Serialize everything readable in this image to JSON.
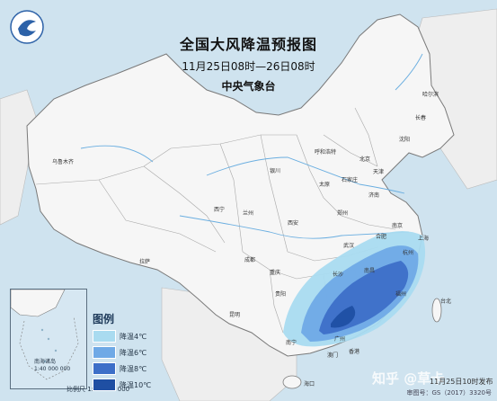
{
  "map": {
    "title": "全国大风降温预报图",
    "subtitle": "11月25日08时—26日08时",
    "agency": "中央气象台"
  },
  "legend": {
    "title": "图例",
    "items": [
      {
        "label": "降温4℃",
        "color": "#a9dbf0"
      },
      {
        "label": "降温6℃",
        "color": "#6fa9e6"
      },
      {
        "label": "降温8℃",
        "color": "#3d6fc8"
      },
      {
        "label": "降温10℃",
        "color": "#1f4fa3"
      }
    ]
  },
  "inset": {
    "label_line1": "南海诸岛",
    "label_line2": "1:40 000 000",
    "scale": "比例尺 1:20 000 000"
  },
  "cities": [
    {
      "name": "乌鲁木齐"
    },
    {
      "name": "拉萨"
    },
    {
      "name": "西宁"
    },
    {
      "name": "兰州"
    },
    {
      "name": "银川"
    },
    {
      "name": "呼和浩特"
    },
    {
      "name": "北京"
    },
    {
      "name": "天津"
    },
    {
      "name": "石家庄"
    },
    {
      "name": "太原"
    },
    {
      "name": "济南"
    },
    {
      "name": "郑州"
    },
    {
      "name": "西安"
    },
    {
      "name": "成都"
    },
    {
      "name": "重庆"
    },
    {
      "name": "武汉"
    },
    {
      "name": "长沙"
    },
    {
      "name": "南昌"
    },
    {
      "name": "杭州"
    },
    {
      "name": "上海"
    },
    {
      "name": "福州"
    },
    {
      "name": "台北"
    },
    {
      "name": "广州"
    },
    {
      "name": "南宁"
    },
    {
      "name": "贵阳"
    },
    {
      "name": "昆明"
    },
    {
      "name": "哈尔滨"
    },
    {
      "name": "长春"
    },
    {
      "name": "沈阳"
    },
    {
      "name": "合肥"
    },
    {
      "name": "南京"
    },
    {
      "name": "香港"
    },
    {
      "name": "澳门"
    },
    {
      "name": "海口"
    }
  ],
  "footer": {
    "publish": "11月25日10时发布",
    "code": "审图号：GS（2017）3320号",
    "watermark": "知乎 @草卡"
  }
}
